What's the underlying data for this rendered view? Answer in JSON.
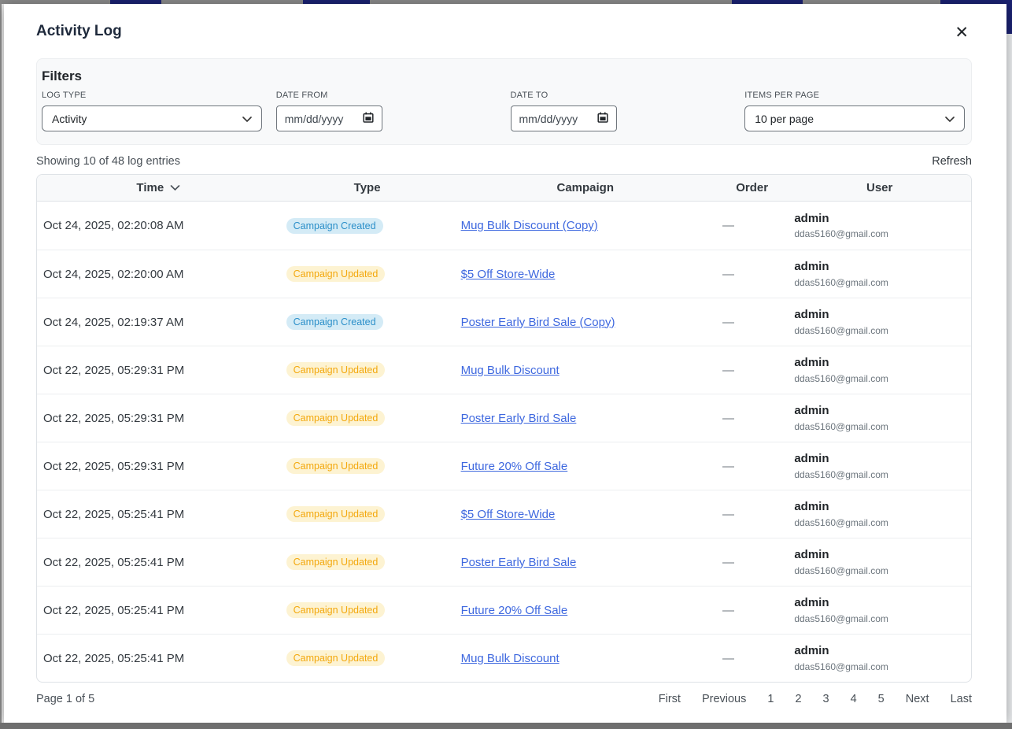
{
  "modal": {
    "title": "Activity Log"
  },
  "icons": {
    "close": "✕"
  },
  "filters": {
    "heading": "Filters",
    "log_type": {
      "label": "LOG TYPE",
      "value": "Activity"
    },
    "date_from": {
      "label": "DATE FROM",
      "placeholder": "mm/dd/yyyy"
    },
    "date_to": {
      "label": "DATE TO",
      "placeholder": "mm/dd/yyyy"
    },
    "items_per_page": {
      "label": "ITEMS PER PAGE",
      "value": "10 per page"
    }
  },
  "summary": {
    "showing": "Showing 10 of 48 log entries",
    "refresh_label": "Refresh"
  },
  "table": {
    "columns": [
      "Time",
      "Type",
      "Campaign",
      "Order",
      "User"
    ],
    "rows": [
      {
        "time": "Oct 24, 2025, 02:20:08 AM",
        "type": "Campaign Created",
        "type_variant": "created",
        "campaign": "Mug Bulk Discount (Copy)",
        "order": "—",
        "user": "admin",
        "email": "ddas5160@gmail.com"
      },
      {
        "time": "Oct 24, 2025, 02:20:00 AM",
        "type": "Campaign Updated",
        "type_variant": "updated",
        "campaign": "$5 Off Store-Wide",
        "order": "—",
        "user": "admin",
        "email": "ddas5160@gmail.com"
      },
      {
        "time": "Oct 24, 2025, 02:19:37 AM",
        "type": "Campaign Created",
        "type_variant": "created",
        "campaign": "Poster Early Bird Sale (Copy)",
        "order": "—",
        "user": "admin",
        "email": "ddas5160@gmail.com"
      },
      {
        "time": "Oct 22, 2025, 05:29:31 PM",
        "type": "Campaign Updated",
        "type_variant": "updated",
        "campaign": "Mug Bulk Discount",
        "order": "—",
        "user": "admin",
        "email": "ddas5160@gmail.com"
      },
      {
        "time": "Oct 22, 2025, 05:29:31 PM",
        "type": "Campaign Updated",
        "type_variant": "updated",
        "campaign": "Poster Early Bird Sale",
        "order": "—",
        "user": "admin",
        "email": "ddas5160@gmail.com"
      },
      {
        "time": "Oct 22, 2025, 05:29:31 PM",
        "type": "Campaign Updated",
        "type_variant": "updated",
        "campaign": "Future 20% Off Sale",
        "order": "—",
        "user": "admin",
        "email": "ddas5160@gmail.com"
      },
      {
        "time": "Oct 22, 2025, 05:25:41 PM",
        "type": "Campaign Updated",
        "type_variant": "updated",
        "campaign": "$5 Off Store-Wide",
        "order": "—",
        "user": "admin",
        "email": "ddas5160@gmail.com"
      },
      {
        "time": "Oct 22, 2025, 05:25:41 PM",
        "type": "Campaign Updated",
        "type_variant": "updated",
        "campaign": "Poster Early Bird Sale",
        "order": "—",
        "user": "admin",
        "email": "ddas5160@gmail.com"
      },
      {
        "time": "Oct 22, 2025, 05:25:41 PM",
        "type": "Campaign Updated",
        "type_variant": "updated",
        "campaign": "Future 20% Off Sale",
        "order": "—",
        "user": "admin",
        "email": "ddas5160@gmail.com"
      },
      {
        "time": "Oct 22, 2025, 05:25:41 PM",
        "type": "Campaign Updated",
        "type_variant": "updated",
        "campaign": "Mug Bulk Discount",
        "order": "—",
        "user": "admin",
        "email": "ddas5160@gmail.com"
      }
    ]
  },
  "pagination": {
    "page_label": "Page 1 of 5",
    "items": [
      "First",
      "Previous",
      "1",
      "2",
      "3",
      "4",
      "5",
      "Next",
      "Last"
    ]
  },
  "colors": {
    "background_navy": "#1b2272",
    "link_blue": "#3e68df",
    "badge_created_bg": "#d4ebf6",
    "badge_created_text": "#2b8fc9",
    "badge_updated_bg": "#fdf3d2",
    "badge_updated_text": "#f3a80d",
    "filters_card_bg": "#f8f9fa",
    "table_header_bg": "#f8f9fa"
  }
}
